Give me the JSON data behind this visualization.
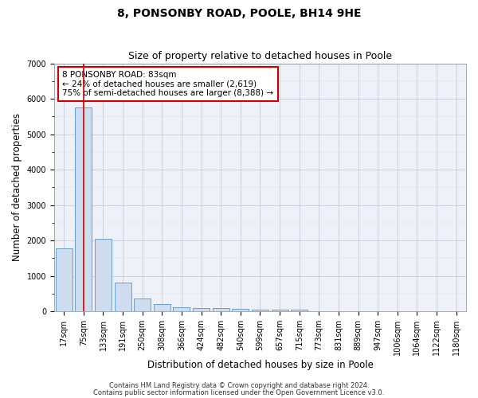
{
  "title": "8, PONSONBY ROAD, POOLE, BH14 9HE",
  "subtitle": "Size of property relative to detached houses in Poole",
  "xlabel": "Distribution of detached houses by size in Poole",
  "ylabel": "Number of detached properties",
  "bar_labels": [
    "17sqm",
    "75sqm",
    "133sqm",
    "191sqm",
    "250sqm",
    "308sqm",
    "366sqm",
    "424sqm",
    "482sqm",
    "540sqm",
    "599sqm",
    "657sqm",
    "715sqm",
    "773sqm",
    "831sqm",
    "889sqm",
    "947sqm",
    "1006sqm",
    "1064sqm",
    "1122sqm",
    "1180sqm"
  ],
  "bar_values": [
    1780,
    5760,
    2060,
    820,
    360,
    205,
    120,
    100,
    100,
    70,
    55,
    50,
    45,
    0,
    0,
    0,
    0,
    0,
    0,
    0,
    0
  ],
  "bar_color": "#cddcee",
  "bar_edge_color": "#6a9fcb",
  "vline_x": 1,
  "vline_color": "#cc0000",
  "annotation_text": "8 PONSONBY ROAD: 83sqm\n← 24% of detached houses are smaller (2,619)\n75% of semi-detached houses are larger (8,388) →",
  "annotation_box_color": "white",
  "annotation_box_edge_color": "#cc0000",
  "ylim": [
    0,
    7000
  ],
  "yticks": [
    0,
    1000,
    2000,
    3000,
    4000,
    5000,
    6000,
    7000
  ],
  "footer1": "Contains HM Land Registry data © Crown copyright and database right 2024.",
  "footer2": "Contains public sector information licensed under the Open Government Licence v3.0.",
  "plot_bg_color": "#eef2f8",
  "title_fontsize": 10,
  "subtitle_fontsize": 9,
  "tick_fontsize": 7,
  "label_fontsize": 8.5,
  "footer_fontsize": 6
}
